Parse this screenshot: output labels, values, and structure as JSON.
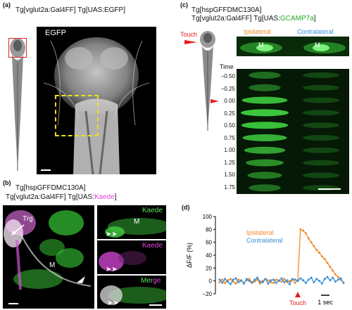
{
  "panel_a": {
    "label": "(a)",
    "genotype": "Tg[vglut2a:Gal4FF] Tg[UAS:EGFP]",
    "image_label": "EGFP"
  },
  "panel_b": {
    "label": "(b)",
    "genotype_line1": "Tg[hspGFFDMC130A]",
    "genotype_line2_prefix": "Tg[vglut2a:Gal4FF] Tg[UAS:",
    "genotype_line2_kaede": "Kaede",
    "genotype_line2_suffix": "]",
    "trg": "Trg",
    "m": "M",
    "side": [
      {
        "label": "Kaede",
        "m": "M",
        "color": "#5ee05e"
      },
      {
        "label": "Kaede",
        "m": "",
        "color": "#e040e0"
      },
      {
        "label_a": "Mer",
        "label_b": "ge",
        "m": "",
        "color": "#5ee05e"
      }
    ]
  },
  "panel_c": {
    "label": "(c)",
    "genotype_line1": "Tg[hspGFFDMC130A]",
    "genotype_line2_prefix": "Tg[vglut2a:Gal4FF] Tg[UAS:",
    "genotype_line2_gcamp": "GCAMP7a",
    "genotype_line2_suffix": "]",
    "touch": "Touch",
    "ipsi": "Ipsilateral",
    "contra": "Contralateral",
    "m": "M",
    "time_title": "Time",
    "times": [
      "−0.50",
      "−0.25",
      "0.00",
      "0.25",
      "0.50",
      "0.75",
      "1.00",
      "1.25",
      "1.50",
      "1.75"
    ]
  },
  "panel_d": {
    "label": "(d)",
    "chart_data": {
      "type": "line",
      "ylabel": "ΔF/F (%)",
      "ylim": [
        -20,
        100
      ],
      "yticks": [
        "−20",
        "0",
        "20",
        "40",
        "60",
        "80",
        "100"
      ],
      "grid": false,
      "legend": "top-left",
      "annotation_touch": "Touch",
      "scalebar_label": "1 sec",
      "series": [
        {
          "name": "Ipsilateral",
          "color": "#f08a24",
          "values": [
            -2,
            2,
            -3,
            1,
            3,
            -1,
            -4,
            2,
            0,
            -3,
            1,
            3,
            -2,
            -1,
            2,
            -4,
            0,
            3,
            1,
            -2,
            -3,
            2,
            1,
            -1,
            3,
            -2,
            0,
            2,
            -3,
            1,
            80,
            78,
            74,
            66,
            60,
            54,
            48,
            44,
            38,
            34,
            28,
            22,
            16,
            10,
            6,
            2,
            -3
          ]
        },
        {
          "name": "Contralateral",
          "color": "#3a8fd8",
          "values": [
            2,
            -3,
            3,
            -1,
            -5,
            2,
            4,
            -2,
            1,
            -4,
            3,
            0,
            -3,
            2,
            5,
            -1,
            -2,
            3,
            -4,
            1,
            2,
            -3,
            0,
            4,
            -2,
            1,
            -5,
            3,
            2,
            0,
            4,
            1,
            -3,
            2,
            5,
            -2,
            3,
            0,
            -4,
            3,
            6,
            1,
            5,
            -1,
            2,
            4,
            -3
          ]
        }
      ]
    }
  }
}
